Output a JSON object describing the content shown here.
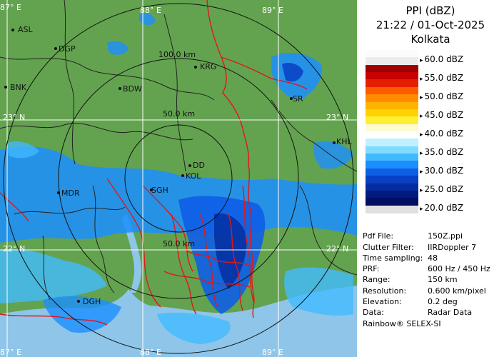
{
  "map": {
    "longitude_labels": [
      "87° E",
      "88° E",
      "89° E"
    ],
    "latitude_labels": [
      "23° N",
      "22° N"
    ],
    "range_labels": [
      "100.0 km",
      "50.0 km",
      "50.0 km"
    ],
    "places": [
      "ASL",
      "DGP",
      "BNK",
      "BDW",
      "KRG",
      "SR",
      "KHL",
      "DD",
      "KOL",
      "MDR",
      "DGH",
      "SGH"
    ],
    "colors": {
      "land": "#63a34f",
      "sea": "#8ec5e8",
      "district_border": "#222222",
      "state_border": "#e01818"
    }
  },
  "product": {
    "title": "PPI (dBZ)",
    "datetime": "21:22 / 01-Oct-2025",
    "station": "Kolkata"
  },
  "color_scale": {
    "unit": "dBZ",
    "labels": [
      "60.0 dBZ",
      "55.0 dBZ",
      "50.0 dBZ",
      "45.0 dBZ",
      "40.0 dBZ",
      "35.0 dBZ",
      "30.0 dBZ",
      "25.0 dBZ",
      "20.0 dBZ"
    ],
    "colors": [
      "#fbfbfb",
      "#ececec",
      "#a00000",
      "#c80000",
      "#e61e00",
      "#ff5a00",
      "#ff8c00",
      "#ffb400",
      "#ffd200",
      "#ffef33",
      "#fffbd0",
      "#ffffff",
      "#bff0ff",
      "#7fdcff",
      "#42baff",
      "#1b8fff",
      "#0e5ee6",
      "#0840c4",
      "#042ea0",
      "#001a80",
      "#000e64",
      "#e0e0e0"
    ]
  },
  "info": [
    {
      "key": "Pdf File:",
      "value": "150Z.ppi"
    },
    {
      "key": "Clutter Filter:",
      "value": "IIRDoppler 7"
    },
    {
      "key": "Time sampling:",
      "value": "48"
    },
    {
      "key": "PRF:",
      "value": "600 Hz / 450 Hz"
    },
    {
      "key": "Range:",
      "value": "150 km"
    },
    {
      "key": "Resolution:",
      "value": "0.600 km/pixel"
    },
    {
      "key": "Elevation:",
      "value": "0.2 deg"
    },
    {
      "key": "Data:",
      "value": "Radar Data"
    }
  ],
  "footer": "Rainbow® SELEX-SI"
}
